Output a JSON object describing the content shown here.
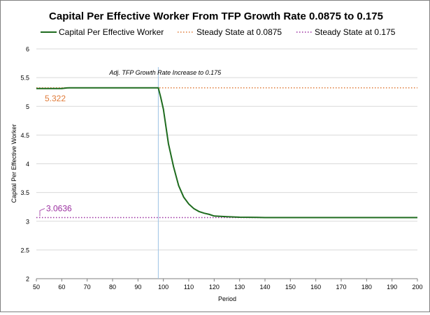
{
  "chart_data": {
    "type": "line",
    "title": "Capital Per Effective Worker From TFP Growth Rate 0.0875 to 0.175",
    "xlabel": "Period",
    "ylabel": "Capital Per Effective Worker",
    "xlim": [
      50,
      200
    ],
    "ylim": [
      2,
      6
    ],
    "xticks": [
      "50",
      "60",
      "70",
      "80",
      "90",
      "100",
      "110",
      "120",
      "130",
      "140",
      "150",
      "160",
      "170",
      "180",
      "190",
      "200"
    ],
    "yticks": [
      "2",
      "2.5",
      "3",
      "3.5",
      "4",
      "4.5",
      "5",
      "5.5",
      "6"
    ],
    "grid": "horizontal",
    "legend_position": "top",
    "series": [
      {
        "name": "Capital Per Effective Worker",
        "color": "#1e6b1e",
        "style": "solid",
        "x": [
          50,
          55,
          60,
          62,
          63,
          70,
          80,
          90,
          98,
          99,
          100,
          102,
          104,
          106,
          108,
          110,
          112,
          114,
          116,
          118,
          120,
          125,
          130,
          137,
          140,
          150,
          160,
          170,
          180,
          190,
          200
        ],
        "y": [
          5.31,
          5.31,
          5.31,
          5.32,
          5.322,
          5.322,
          5.322,
          5.322,
          5.322,
          5.15,
          4.95,
          4.35,
          3.95,
          3.62,
          3.42,
          3.3,
          3.22,
          3.17,
          3.14,
          3.12,
          3.09,
          3.08,
          3.07,
          3.068,
          3.064,
          3.064,
          3.064,
          3.064,
          3.064,
          3.064,
          3.064
        ]
      },
      {
        "name": "Steady State at 0.0875",
        "color": "#e07b39",
        "style": "dotted",
        "value": 5.322
      },
      {
        "name": "Steady State at 0.175",
        "color": "#9b2fa0",
        "style": "dotted",
        "value": 3.0636
      }
    ],
    "annotations": [
      {
        "text": "5.322",
        "x": 50,
        "y": 5.322,
        "color": "#e07b39"
      },
      {
        "text": "3.0636",
        "x": 50,
        "y": 3.0636,
        "color": "#9b2fa0"
      },
      {
        "text": "Adj. TFP Growth Rate Increase to 0.175",
        "x": 98,
        "y": 5.322
      }
    ],
    "vline": {
      "x": 98,
      "color": "#9dc3e6"
    }
  }
}
